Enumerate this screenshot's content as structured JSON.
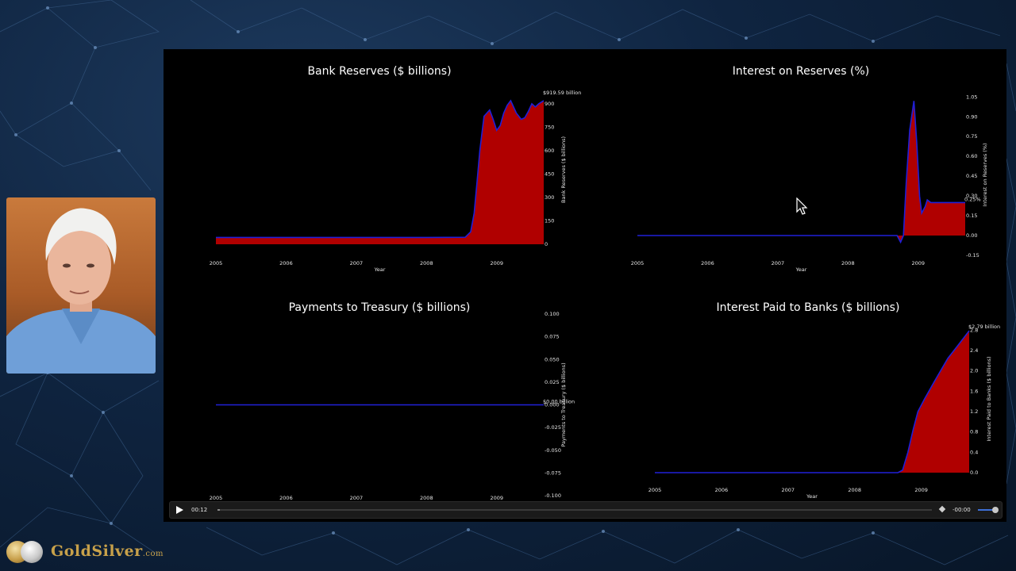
{
  "player": {
    "time_elapsed": "00:12",
    "time_remaining": "-00:00",
    "progress_fraction": 0.003,
    "volume_fraction": 0.8
  },
  "branding": {
    "logo_text": "GoldSilver",
    "logo_suffix": ".com"
  },
  "colors": {
    "fill": "#b00000",
    "line": "#2020d8",
    "background": "#000000",
    "text": "#ffffff"
  },
  "chart_data": [
    {
      "type": "area",
      "title": "Bank Reserves ($ billions)",
      "xlabel": "Year",
      "ylabel": "Bank Reserves ($ billions)",
      "y_axis_position": "right",
      "xlim": [
        2005.0,
        2009.67
      ],
      "ylim": [
        -5,
        960
      ],
      "x_ticks": [
        "2005",
        "2006",
        "2007",
        "2008",
        "2009"
      ],
      "y_ticks": [
        "0",
        "150",
        "300",
        "450",
        "600",
        "750",
        "900"
      ],
      "annotation": "$919.59 billion",
      "x": [
        2005.0,
        2006.0,
        2007.0,
        2008.0,
        2008.55,
        2008.63,
        2008.68,
        2008.72,
        2008.76,
        2008.82,
        2008.9,
        2008.95,
        2009.0,
        2009.05,
        2009.1,
        2009.15,
        2009.2,
        2009.28,
        2009.35,
        2009.4,
        2009.45,
        2009.5,
        2009.55,
        2009.6,
        2009.67
      ],
      "values": [
        44,
        44,
        44,
        44,
        45,
        80,
        200,
        400,
        600,
        820,
        860,
        800,
        730,
        760,
        840,
        890,
        920,
        840,
        800,
        810,
        850,
        900,
        880,
        900,
        920
      ]
    },
    {
      "type": "area",
      "title": "Interest on Reserves (%)",
      "xlabel": "Year",
      "ylabel": "Interest on Reserves (%)",
      "y_axis_position": "right",
      "xlim": [
        2005.0,
        2009.67
      ],
      "ylim": [
        -0.18,
        1.1
      ],
      "x_ticks": [
        "2005",
        "2006",
        "2007",
        "2008",
        "2009"
      ],
      "y_ticks": [
        "-0.15",
        "0.00",
        "0.15",
        "0.30",
        "0.45",
        "0.60",
        "0.75",
        "0.90",
        "1.05"
      ],
      "annotation": "0.25%",
      "x": [
        2005.0,
        2006.0,
        2007.0,
        2008.0,
        2008.7,
        2008.75,
        2008.79,
        2008.83,
        2008.88,
        2008.94,
        2008.98,
        2009.02,
        2009.05,
        2009.1,
        2009.13,
        2009.18,
        2009.25,
        2009.4,
        2009.55,
        2009.67
      ],
      "values": [
        0,
        0,
        0,
        0,
        0,
        -0.05,
        0.0,
        0.4,
        0.8,
        1.02,
        0.7,
        0.3,
        0.17,
        0.22,
        0.27,
        0.25,
        0.25,
        0.25,
        0.25,
        0.25
      ]
    },
    {
      "type": "line",
      "title": "Payments to Treasury ($ billions)",
      "xlabel": "",
      "ylabel": "Payments to Treasury ($ billions)",
      "y_axis_position": "right",
      "xlim": [
        2005.0,
        2009.67
      ],
      "ylim": [
        -0.1,
        0.1
      ],
      "x_ticks": [
        "2005",
        "2006",
        "2007",
        "2008",
        "2009"
      ],
      "y_ticks": [
        "-0.100",
        "-0.075",
        "-0.050",
        "-0.025",
        "0.000",
        "0.025",
        "0.050",
        "0.075",
        "0.100"
      ],
      "annotation": "$0.00 billion",
      "x": [
        2005.0,
        2009.67
      ],
      "values": [
        0,
        0
      ]
    },
    {
      "type": "area",
      "title": "Interest Paid to Banks ($ billions)",
      "xlabel": "Year",
      "ylabel": "Interest Paid to Banks ($ billions)",
      "y_axis_position": "right",
      "xlim": [
        2005.0,
        2009.72
      ],
      "ylim": [
        0,
        2.9
      ],
      "x_ticks": [
        "2005",
        "2006",
        "2007",
        "2008",
        "2009"
      ],
      "y_ticks": [
        "0.0",
        "0.4",
        "0.8",
        "1.2",
        "1.6",
        "2.0",
        "2.4",
        "2.8"
      ],
      "annotation": "$2.79 billion",
      "x": [
        2005.0,
        2006.0,
        2007.0,
        2008.0,
        2008.65,
        2008.72,
        2008.8,
        2008.88,
        2008.95,
        2009.05,
        2009.2,
        2009.4,
        2009.55,
        2009.72
      ],
      "values": [
        0,
        0,
        0,
        0,
        0,
        0.05,
        0.4,
        0.85,
        1.2,
        1.45,
        1.8,
        2.25,
        2.5,
        2.79
      ]
    }
  ]
}
